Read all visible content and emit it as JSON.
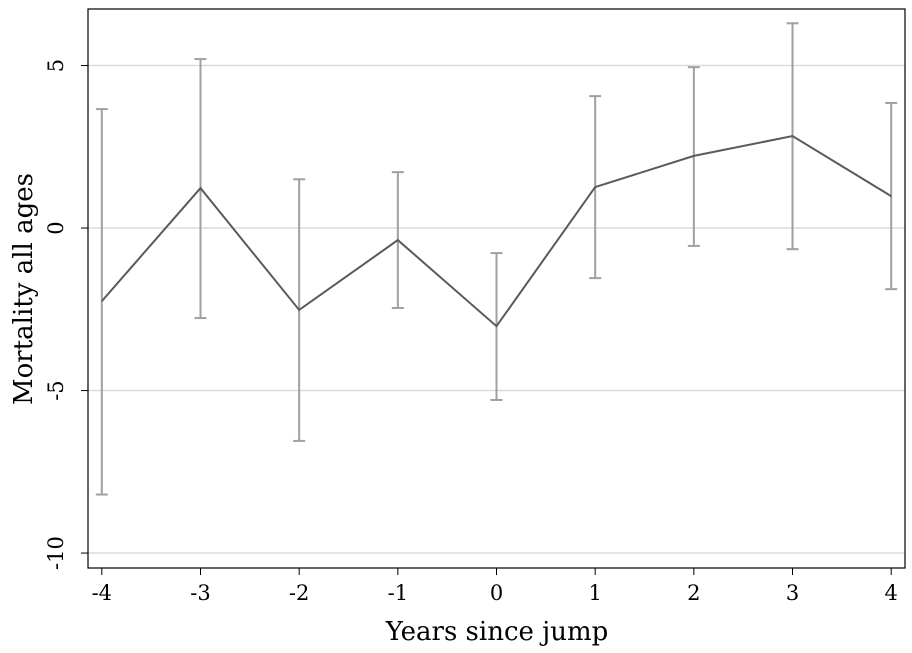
{
  "chart_data": {
    "type": "line",
    "title": "",
    "xlabel": "Years since jump",
    "ylabel": "Mortality all ages",
    "x": [
      -4,
      -3,
      -2,
      -1,
      0,
      1,
      2,
      3,
      4
    ],
    "series": [
      {
        "values": [
          -2.25,
          1.23,
          -2.52,
          -0.37,
          -3.02,
          1.26,
          2.22,
          2.83,
          0.98
        ],
        "ci_upper": [
          3.66,
          5.2,
          1.5,
          1.72,
          -0.77,
          4.06,
          4.95,
          6.3,
          3.85
        ],
        "ci_lower": [
          -8.2,
          -2.77,
          -6.55,
          -2.46,
          -5.29,
          -1.54,
          -0.55,
          -0.65,
          -1.88
        ],
        "line_color": "#5a5a5a",
        "errorbar_color": "#a0a0a0"
      }
    ],
    "xticks": [
      "-4",
      "-3",
      "-2",
      "-1",
      "0",
      "1",
      "2",
      "3",
      "4"
    ],
    "yticks": [
      "5",
      "0",
      "-5",
      "-10"
    ],
    "xlim": [
      -4.14,
      4.14
    ],
    "ylim": [
      -10.46,
      6.74
    ],
    "grid": "horizontal",
    "grid_color": "#dcdcdc"
  }
}
